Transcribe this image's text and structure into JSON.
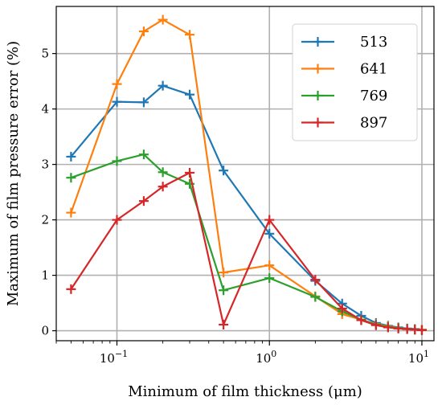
{
  "chart_data": {
    "type": "line",
    "xscale": "log",
    "xlabel": "Minimum of film thickness (μm)",
    "ylabel": "Maximum of film pressure error (%)",
    "xlim": [
      0.04,
      12
    ],
    "ylim": [
      -0.18,
      5.85
    ],
    "xticks": [
      {
        "value": 0.1,
        "base": "10",
        "exp": "−1"
      },
      {
        "value": 1,
        "base": "10",
        "exp": "0"
      },
      {
        "value": 10,
        "base": "10",
        "exp": "1"
      }
    ],
    "yticks": [
      0,
      1,
      2,
      3,
      4,
      5
    ],
    "grid": true,
    "legend_position": "top-right",
    "marker": "+",
    "x": [
      0.05,
      0.1,
      0.15,
      0.2,
      0.3,
      0.5,
      1,
      2,
      3,
      4,
      5,
      6,
      7,
      8,
      9,
      10
    ],
    "series": [
      {
        "name": "513",
        "color": "#1f77b4",
        "values": [
          3.14,
          4.13,
          4.12,
          4.42,
          4.26,
          2.89,
          1.75,
          0.9,
          0.49,
          0.27,
          0.14,
          0.09,
          0.06,
          0.04,
          0.03,
          0.02
        ]
      },
      {
        "name": "641",
        "color": "#ff7f0e",
        "values": [
          2.13,
          4.45,
          5.4,
          5.61,
          5.34,
          1.05,
          1.18,
          0.62,
          0.3,
          0.2,
          0.12,
          0.08,
          0.05,
          0.03,
          0.02,
          0.02
        ]
      },
      {
        "name": "769",
        "color": "#2ca02c",
        "values": [
          2.76,
          3.06,
          3.18,
          2.86,
          2.65,
          0.73,
          0.95,
          0.61,
          0.35,
          0.2,
          0.11,
          0.07,
          0.05,
          0.03,
          0.02,
          0.01
        ]
      },
      {
        "name": "897",
        "color": "#d62728",
        "values": [
          0.75,
          2.0,
          2.34,
          2.6,
          2.85,
          0.11,
          2.0,
          0.92,
          0.4,
          0.19,
          0.1,
          0.06,
          0.04,
          0.03,
          0.02,
          0.01
        ]
      }
    ]
  }
}
